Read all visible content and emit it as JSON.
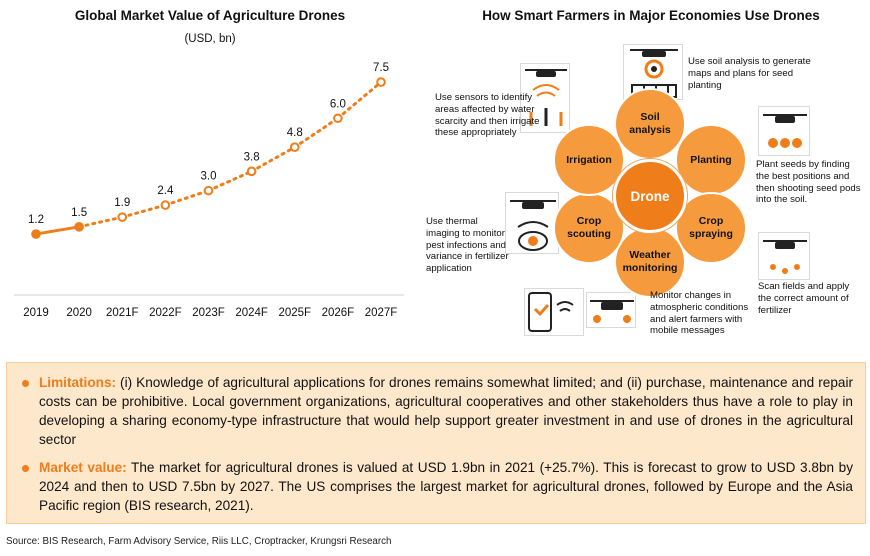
{
  "left_panel": {
    "title": "Global Market Value of Agriculture Drones",
    "unit": "(USD, bn)"
  },
  "chart_data": {
    "type": "line",
    "title": "Global Market Value of Agriculture Drones",
    "ylabel": "(USD, bn)",
    "categories": [
      "2019",
      "2020",
      "2021F",
      "2022F",
      "2023F",
      "2024F",
      "2025F",
      "2026F",
      "2027F"
    ],
    "values": [
      1.2,
      1.5,
      1.9,
      2.4,
      3.0,
      3.8,
      4.8,
      6.0,
      7.5
    ],
    "labels": [
      "1.2",
      "1.5",
      "1.9",
      "2.4",
      "3.0",
      "3.8",
      "4.8",
      "6.0",
      "7.5"
    ],
    "solid_until_index": 1,
    "ylim": [
      0,
      8
    ],
    "grid": false,
    "color": "#ef7d1a"
  },
  "right_panel": {
    "title": "How Smart Farmers in Major Economies Use Drones",
    "hub_label": "Drone",
    "petals": {
      "soil": "Soil analysis",
      "planting": "Planting",
      "spraying": "Crop spraying",
      "weather": "Weather monitoring",
      "scouting": "Crop scouting",
      "irrigation": "Irrigation"
    },
    "notes": {
      "soil": "Use soil analysis to generate maps and plans for seed planting",
      "planting": "Plant seeds by finding the best positions and then shooting seed pods into the soil.",
      "spraying": "Scan fields and apply the correct amount of fertilizer",
      "weather": "Monitor changes in atmospheric conditions and alert farmers with mobile messages",
      "scouting": "Use thermal imaging to monitor pest infections and variance in fertilizer application",
      "irrigation": "Use sensors to identify areas affected by water scarcity and then irrigate these appropriately"
    }
  },
  "info": {
    "limitations_label": "Limitations:",
    "limitations_text": " (i) Knowledge of agricultural applications for drones remains somewhat limited; and (ii) purchase, maintenance and repair costs can be prohibitive. Local government organizations, agricultural cooperatives and other stakeholders thus have a role to play in developing a sharing economy-type infrastructure that would help support greater investment in and use of drones in the agricultural sector",
    "market_label": "Market value:",
    "market_text": " The market for agricultural drones is valued at USD 1.9bn in 2021 (+25.7%). This is forecast to grow to USD 3.8bn by 2024 and then to USD 7.5bn by 2027. The US comprises the largest market for agricultural drones, followed by Europe and the Asia Pacific region (BIS research, 2021)."
  },
  "source": "Source: BIS Research, Farm Advisory Service, Riis LLC, Croptracker, Krungsri Research",
  "colors": {
    "accent": "#ef7d1a",
    "petal": "#f59b3d",
    "info_bg": "#fde8cc"
  }
}
